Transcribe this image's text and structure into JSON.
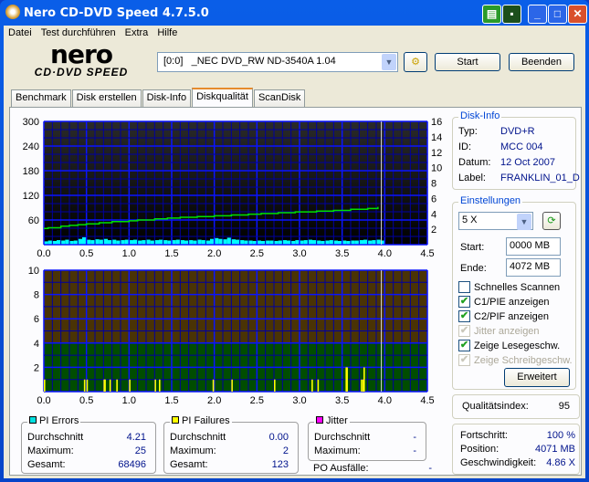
{
  "window": {
    "title": "Nero CD-DVD Speed 4.7.5.0"
  },
  "menu": [
    "Datei",
    "Test durchführen",
    "Extra",
    "Hilfe"
  ],
  "logo": {
    "top": "nero",
    "bottom": "CD·DVD SPEED"
  },
  "toolbar": {
    "drive": "[0:0]   _NEC DVD_RW ND-3540A 1.04",
    "start": "Start",
    "exit": "Beenden"
  },
  "tabs": [
    {
      "label": "Benchmark"
    },
    {
      "label": "Disk erstellen"
    },
    {
      "label": "Disk-Info"
    },
    {
      "label": "Diskqualität",
      "active": true
    },
    {
      "label": "ScanDisk"
    }
  ],
  "disk_info": {
    "title": "Disk-Info",
    "type_label": "Typ:",
    "type": "DVD+R",
    "id_label": "ID:",
    "id": "MCC 004",
    "date_label": "Datum:",
    "date": "12 Oct 2007",
    "label_label": "Label:",
    "label": "FRANKLIN_01_D"
  },
  "settings": {
    "title": "Einstellungen",
    "speed": "5 X",
    "start_label": "Start:",
    "start": "0000 MB",
    "end_label": "Ende:",
    "end": "4072 MB",
    "checks": [
      {
        "label": "Schnelles Scannen",
        "checked": false,
        "enabled": true
      },
      {
        "label": "C1/PIE anzeigen",
        "checked": true,
        "enabled": true
      },
      {
        "label": "C2/PIF anzeigen",
        "checked": true,
        "enabled": true
      },
      {
        "label": "Jitter anzeigen",
        "checked": true,
        "enabled": false
      },
      {
        "label": "Zeige Lesegeschw.",
        "checked": true,
        "enabled": true
      },
      {
        "label": "Zeige Schreibgeschw.",
        "checked": true,
        "enabled": false
      }
    ],
    "advanced": "Erweitert"
  },
  "quality": {
    "label": "Qualitätsindex:",
    "value": "95"
  },
  "progress": {
    "progress_label": "Fortschritt:",
    "progress": "100 %",
    "position_label": "Position:",
    "position": "4071 MB",
    "speed_label": "Geschwindigkeit:",
    "speed": "4.86 X"
  },
  "pi_errors": {
    "title": "PI Errors",
    "color": "#00e0e0",
    "avg_label": "Durchschnitt",
    "avg": "4.21",
    "max_label": "Maximum:",
    "max": "25",
    "total_label": "Gesamt:",
    "total": "68496"
  },
  "pi_failures": {
    "title": "PI Failures",
    "color": "#ffff00",
    "avg_label": "Durchschnitt",
    "avg": "0.00",
    "max_label": "Maximum:",
    "max": "2",
    "total_label": "Gesamt:",
    "total": "123"
  },
  "jitter": {
    "title": "Jitter",
    "color": "#ff00ff",
    "avg_label": "Durchschnitt",
    "avg": "-",
    "max_label": "Maximum:",
    "max": "-",
    "po_label": "PO Ausfälle:",
    "po": "-"
  },
  "chart_data": [
    {
      "type": "bar",
      "name": "pi-errors-chart",
      "xlim": [
        0,
        4.5
      ],
      "ylim": [
        0,
        300
      ],
      "y2lim": [
        0,
        16
      ],
      "xticks": [
        "0.0",
        "0.5",
        "1.0",
        "1.5",
        "2.0",
        "2.5",
        "3.0",
        "3.5",
        "4.0",
        "4.5"
      ],
      "yticks": [
        "60",
        "120",
        "180",
        "240",
        "300"
      ],
      "y2ticks": [
        "2",
        "4",
        "6",
        "8",
        "10",
        "12",
        "14",
        "16"
      ],
      "pi_x_step": 0.05,
      "pi_values": [
        8,
        10,
        9,
        11,
        10,
        12,
        9,
        10,
        14,
        18,
        12,
        11,
        13,
        12,
        14,
        11,
        12,
        10,
        11,
        12,
        11,
        12,
        10,
        11,
        12,
        10,
        11,
        12,
        11,
        10,
        11,
        12,
        11,
        10,
        11,
        10,
        12,
        11,
        10,
        14,
        16,
        14,
        13,
        17,
        13,
        12,
        11,
        10,
        10,
        9,
        10,
        9,
        10,
        10,
        9,
        10,
        11,
        10,
        9,
        11,
        10,
        11,
        12,
        11,
        10,
        9,
        10,
        11,
        10,
        9,
        10,
        9,
        10,
        10,
        11,
        12,
        10,
        11,
        12,
        10
      ],
      "read_speed": [
        [
          0,
          2.1
        ],
        [
          0.05,
          2.2
        ],
        [
          0.2,
          2.4
        ],
        [
          0.3,
          2.5
        ],
        [
          0.4,
          2.6
        ],
        [
          0.5,
          2.7
        ],
        [
          0.65,
          2.85
        ],
        [
          0.8,
          3.0
        ],
        [
          1.0,
          3.1
        ],
        [
          1.1,
          3.2
        ],
        [
          1.3,
          3.35
        ],
        [
          1.45,
          3.45
        ],
        [
          1.6,
          3.55
        ],
        [
          1.8,
          3.65
        ],
        [
          2.0,
          3.75
        ],
        [
          2.2,
          3.85
        ],
        [
          2.4,
          3.95
        ],
        [
          2.55,
          4.05
        ],
        [
          2.75,
          4.15
        ],
        [
          2.95,
          4.25
        ],
        [
          3.2,
          4.35
        ],
        [
          3.4,
          4.45
        ],
        [
          3.6,
          4.6
        ],
        [
          3.8,
          4.7
        ],
        [
          3.92,
          4.9
        ]
      ],
      "end_marker": 3.96
    },
    {
      "type": "bar",
      "name": "pi-failures-chart",
      "xlim": [
        0,
        4.5
      ],
      "ylim": [
        0,
        10
      ],
      "xticks": [
        "0.0",
        "0.5",
        "1.0",
        "1.5",
        "2.0",
        "2.5",
        "3.0",
        "3.5",
        "4.0",
        "4.5"
      ],
      "yticks": [
        "2",
        "4",
        "6",
        "8",
        "10"
      ],
      "threshold": 4,
      "pif": [
        [
          0.0,
          1
        ],
        [
          0.47,
          1
        ],
        [
          0.5,
          1
        ],
        [
          0.7,
          1
        ],
        [
          0.71,
          1
        ],
        [
          0.77,
          1
        ],
        [
          0.85,
          1
        ],
        [
          1.0,
          1
        ],
        [
          1.3,
          1
        ],
        [
          1.35,
          1
        ],
        [
          1.98,
          1
        ],
        [
          2.2,
          1
        ],
        [
          2.7,
          1
        ],
        [
          3.14,
          1
        ],
        [
          3.21,
          1
        ],
        [
          3.54,
          2
        ],
        [
          3.55,
          2
        ],
        [
          3.72,
          1
        ],
        [
          3.74,
          1
        ],
        [
          3.75,
          2
        ]
      ],
      "end_marker": 3.96
    }
  ]
}
